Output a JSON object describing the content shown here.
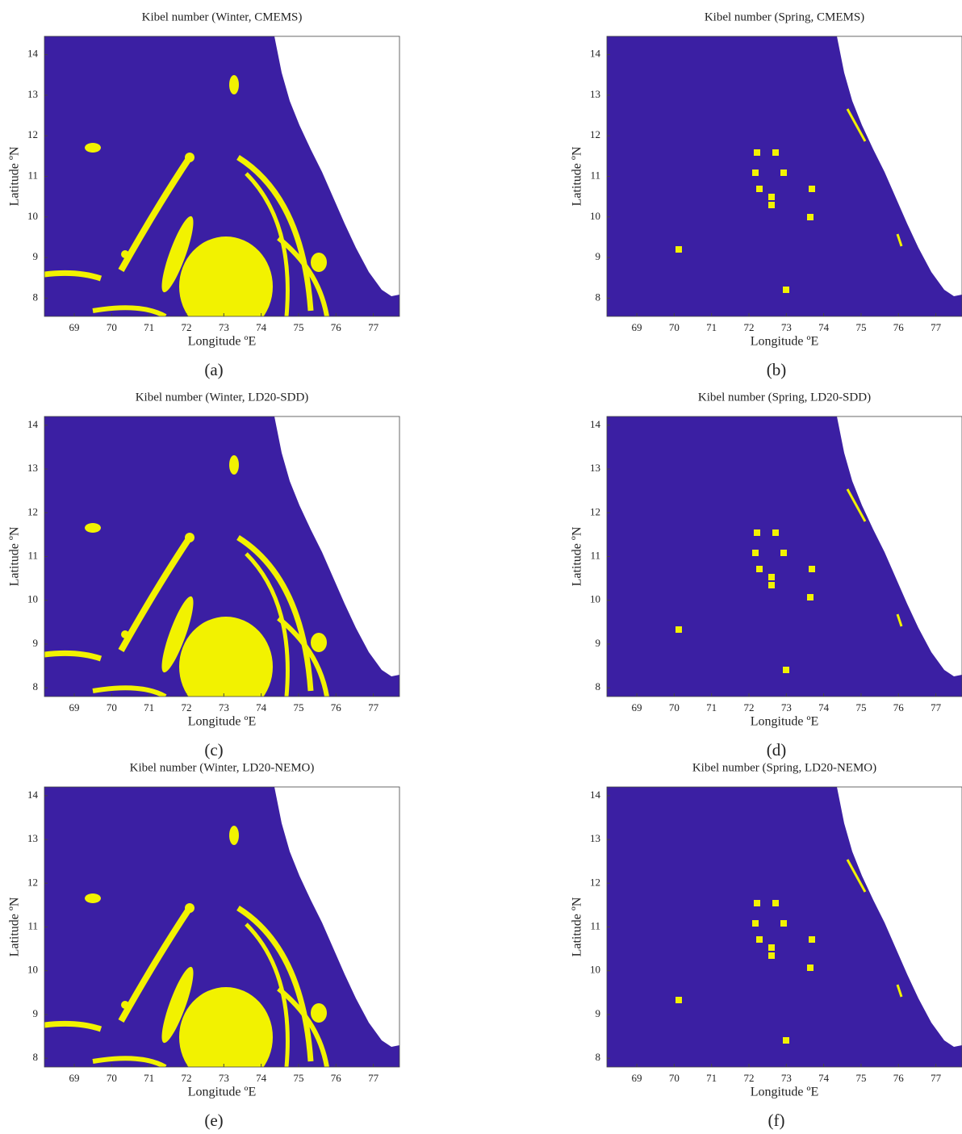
{
  "chart_data": [
    {
      "type": "map",
      "title": "Kibel number  (Winter, CMEMS)",
      "panel_label": "(a)",
      "xlabel": "Longitude ºE",
      "ylabel": "Latitude ºN",
      "xlim": [
        68.2,
        77.7
      ],
      "ylim": [
        7.55,
        14.45
      ],
      "xticks": [
        69,
        70,
        71,
        72,
        73,
        74,
        75,
        76,
        77
      ],
      "yticks": [
        8,
        9,
        10,
        11,
        12,
        13,
        14
      ]
    },
    {
      "type": "map",
      "title": "Kibel number  (Spring, CMEMS)",
      "panel_label": "(b)",
      "xlabel": "Longitude ºE",
      "ylabel": "Latitude ºN",
      "xlim": [
        68.2,
        77.7
      ],
      "ylim": [
        7.55,
        14.45
      ],
      "xticks": [
        69,
        70,
        71,
        72,
        73,
        74,
        75,
        76,
        77
      ],
      "yticks": [
        8,
        9,
        10,
        11,
        12,
        13,
        14
      ]
    },
    {
      "type": "map",
      "title": "Kibel number  (Winter, LD20-SDD)",
      "panel_label": "(c)",
      "xlabel": "Longitude ºE",
      "ylabel": "Latitude ºN",
      "xlim": [
        68.2,
        77.7
      ],
      "ylim": [
        7.8,
        14.2
      ],
      "xticks": [
        69,
        70,
        71,
        72,
        73,
        74,
        75,
        76,
        77
      ],
      "yticks": [
        8,
        9,
        10,
        11,
        12,
        13,
        14
      ]
    },
    {
      "type": "map",
      "title": "Kibel number  (Spring, LD20-SDD)",
      "panel_label": "(d)",
      "xlabel": "Longitude ºE",
      "ylabel": "Latitude ºN",
      "xlim": [
        68.2,
        77.7
      ],
      "ylim": [
        7.8,
        14.2
      ],
      "xticks": [
        69,
        70,
        71,
        72,
        73,
        74,
        75,
        76,
        77
      ],
      "yticks": [
        8,
        9,
        10,
        11,
        12,
        13,
        14
      ]
    },
    {
      "type": "map",
      "title": "Kibel number  (Winter, LD20-NEMO)",
      "panel_label": "(e)",
      "xlabel": "Longitude ºE",
      "ylabel": "Latitude ºN",
      "xlim": [
        68.2,
        77.7
      ],
      "ylim": [
        7.8,
        14.2
      ],
      "xticks": [
        69,
        70,
        71,
        72,
        73,
        74,
        75,
        76,
        77
      ],
      "yticks": [
        8,
        9,
        10,
        11,
        12,
        13,
        14
      ]
    },
    {
      "type": "map",
      "title": "Kibel number  (Spring, LD20-NEMO)",
      "panel_label": "(f)",
      "xlabel": "Longitude ºE",
      "ylabel": "Latitude ºN",
      "xlim": [
        68.2,
        77.7
      ],
      "ylim": [
        7.8,
        14.2
      ],
      "xticks": [
        69,
        70,
        71,
        72,
        73,
        74,
        75,
        76,
        77
      ],
      "yticks": [
        8,
        9,
        10,
        11,
        12,
        13,
        14
      ]
    }
  ]
}
